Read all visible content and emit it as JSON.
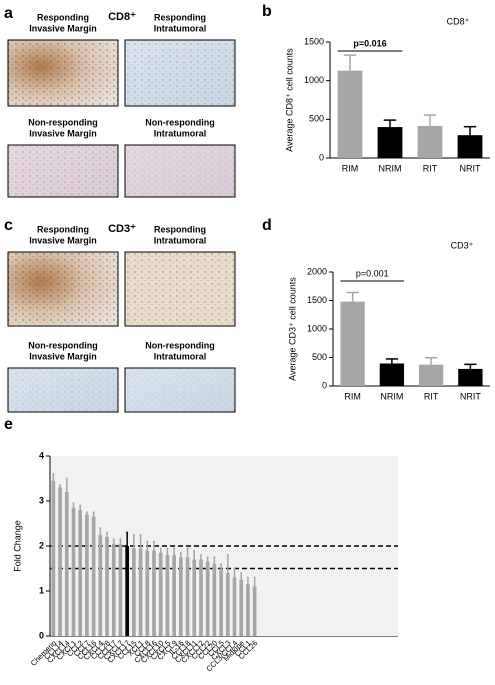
{
  "panels": [
    {
      "letter": "a",
      "title": "CD8⁺",
      "images": [
        {
          "label": [
            "Responding",
            "Invasive Margin"
          ]
        },
        {
          "label": [
            "Responding",
            "Intratumoral"
          ]
        },
        {
          "label": [
            "Non-responding",
            "Invasive Margin"
          ]
        },
        {
          "label": [
            "Non-responding",
            "Intratumoral"
          ]
        }
      ]
    },
    {
      "letter": "c",
      "title": "CD3⁺",
      "images": [
        {
          "label": [
            "Responding",
            "Invasive Margin"
          ]
        },
        {
          "label": [
            "Responding",
            "Intratumoral"
          ]
        },
        {
          "label": [
            "Non-responding",
            "Invasive Margin"
          ]
        },
        {
          "label": [
            "Non-responding",
            "Intratumoral"
          ]
        }
      ]
    }
  ],
  "chart_data": [
    {
      "type": "bar",
      "panel_label": "b",
      "title": "CD8⁺",
      "ylabel": "Average CD8⁺ cell counts",
      "categories": [
        "RIM",
        "NRIM",
        "RIT",
        "NRIT"
      ],
      "values": [
        1130,
        400,
        415,
        295
      ],
      "errors": [
        200,
        90,
        140,
        110
      ],
      "colors": [
        "#a6a6a6",
        "#000000",
        "#a6a6a6",
        "#000000"
      ],
      "ylim": [
        0,
        1500
      ],
      "yticks": [
        0,
        500,
        1000,
        1500
      ],
      "annotation": {
        "text": "p=0.016",
        "from": "RIM",
        "to": "NRIM"
      }
    },
    {
      "type": "bar",
      "panel_label": "d",
      "title": "CD3⁺",
      "ylabel": "Average CD3⁺ cell counts",
      "categories": [
        "RIM",
        "NRIM",
        "RIT",
        "NRIT"
      ],
      "values": [
        1480,
        395,
        375,
        300
      ],
      "errors": [
        160,
        80,
        120,
        80
      ],
      "colors": [
        "#a6a6a6",
        "#000000",
        "#a6a6a6",
        "#000000"
      ],
      "ylim": [
        0,
        2000
      ],
      "yticks": [
        0,
        500,
        1000,
        1500,
        2000
      ],
      "annotation": {
        "text": "p=0.001",
        "from": "RIM",
        "to": "NRIM"
      }
    },
    {
      "type": "bar",
      "panel_label": "e",
      "ylabel": "Fold Change",
      "categories": [
        "Chemerin",
        "CCL14",
        "CXCL14",
        "CXCL1",
        "CCL2",
        "CCL7",
        "CCL16",
        "CXCL4",
        "CCL28",
        "CCL17",
        "CXCL7",
        "CXCL17",
        "CCL15",
        "XCL1",
        "CCL8",
        "CXCL16",
        "CXCL10",
        "CXCL5",
        "CXCL9",
        "IL-16",
        "CCL18",
        "CXCL11",
        "CXCL12",
        "CCL22",
        "CCL20",
        "CCL5",
        "CXCL3",
        "CCL3/CCL4",
        "Midkine",
        "CCL1",
        "CCL26"
      ],
      "values": [
        3.45,
        3.3,
        3.2,
        2.85,
        2.8,
        2.7,
        2.65,
        2.25,
        2.2,
        2.05,
        2.05,
        2.0,
        1.95,
        1.95,
        1.9,
        1.9,
        1.85,
        1.8,
        1.8,
        1.75,
        1.75,
        1.7,
        1.7,
        1.65,
        1.6,
        1.5,
        1.4,
        1.3,
        1.25,
        1.15,
        1.1
      ],
      "errors": [
        0.15,
        0.05,
        0.3,
        0.1,
        0.1,
        0.05,
        0.1,
        0.15,
        0.1,
        0.1,
        0.1,
        0.3,
        0.3,
        0.3,
        0.2,
        0.2,
        0.1,
        0.15,
        0.15,
        0.1,
        0.2,
        0.2,
        0.1,
        0.1,
        0.15,
        0.1,
        0.4,
        0.2,
        0.15,
        0.15,
        0.2
      ],
      "colors": [
        "#a6a6a6",
        "#a6a6a6",
        "#a6a6a6",
        "#a6a6a6",
        "#a6a6a6",
        "#a6a6a6",
        "#a6a6a6",
        "#a6a6a6",
        "#a6a6a6",
        "#a6a6a6",
        "#a6a6a6",
        "#000000",
        "#a6a6a6",
        "#a6a6a6",
        "#a6a6a6",
        "#a6a6a6",
        "#a6a6a6",
        "#a6a6a6",
        "#a6a6a6",
        "#a6a6a6",
        "#a6a6a6",
        "#a6a6a6",
        "#a6a6a6",
        "#a6a6a6",
        "#a6a6a6",
        "#a6a6a6",
        "#a6a6a6",
        "#a6a6a6",
        "#a6a6a6",
        "#a6a6a6",
        "#a6a6a6"
      ],
      "ylim": [
        0,
        4
      ],
      "yticks": [
        0,
        1,
        2,
        3,
        4
      ],
      "reference_lines": [
        2,
        1.5
      ]
    }
  ]
}
